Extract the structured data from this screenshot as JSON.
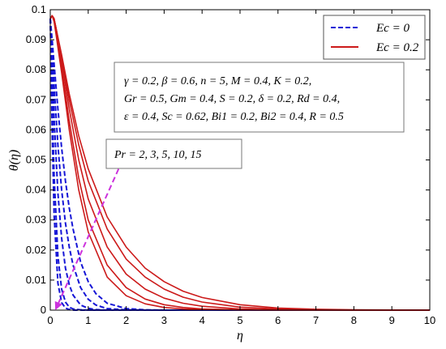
{
  "chart_data": {
    "type": "line",
    "xlabel": "η",
    "ylabel": "θ(η)",
    "xlim": [
      0,
      10
    ],
    "ylim": [
      0,
      0.1
    ],
    "x_ticks": [
      "0",
      "1",
      "2",
      "3",
      "4",
      "5",
      "6",
      "7",
      "8",
      "9",
      "10"
    ],
    "y_ticks": [
      "0",
      "0.01",
      "0.02",
      "0.03",
      "0.04",
      "0.05",
      "0.06",
      "0.07",
      "0.08",
      "0.09",
      "0.1"
    ],
    "legend": {
      "placement": "top-right",
      "entries": [
        {
          "label": "Ec = 0",
          "color": "#1515d6",
          "style": "dashed"
        },
        {
          "label": "Ec = 0.2",
          "color": "#cc1a1a",
          "style": "solid"
        }
      ]
    },
    "parameter_box_lines": [
      "γ = 0.2, β = 0.6, n = 5, M = 0.4, K = 0.2,",
      "Gr = 0.5, Gm = 0.4, S = 0.2, δ = 0.2, Rd = 0.4,",
      "ε = 0.4, Sc = 0.62, Bi1 = 0.2, Bi2 = 0.4, R = 0.5"
    ],
    "annotation": {
      "text": "Pr = 2, 3, 5, 10, 15",
      "arrow_from": [
        1.8,
        0.047
      ],
      "arrow_to": [
        0.15,
        0.0005
      ],
      "color": "#cc33dd"
    },
    "pr_values": [
      2,
      3,
      5,
      10,
      15
    ],
    "series": [
      {
        "name": "Ec = 0",
        "style": "dashed",
        "color": "#1515d6",
        "x": [
          0,
          0.05,
          0.1,
          0.2,
          0.3,
          0.4,
          0.5,
          0.6,
          0.8,
          1.0,
          1.2,
          1.5,
          2.0,
          2.5,
          3.0
        ],
        "values": [
          [
            0.097,
            0.09,
            0.082,
            0.067,
            0.054,
            0.043,
            0.034,
            0.027,
            0.016,
            0.0095,
            0.0055,
            0.0023,
            0.0005,
            0.0001,
            0
          ],
          [
            0.097,
            0.087,
            0.075,
            0.055,
            0.04,
            0.029,
            0.021,
            0.015,
            0.0075,
            0.0036,
            0.0017,
            0.0005,
            0.0001,
            0,
            0
          ],
          [
            0.097,
            0.082,
            0.064,
            0.039,
            0.024,
            0.014,
            0.0085,
            0.005,
            0.0017,
            0.0006,
            0.0002,
            0,
            0,
            0,
            0
          ],
          [
            0.097,
            0.07,
            0.045,
            0.018,
            0.007,
            0.0027,
            0.001,
            0.0004,
            0.0001,
            0,
            0,
            0,
            0,
            0,
            0
          ],
          [
            0.097,
            0.06,
            0.032,
            0.009,
            0.0025,
            0.0007,
            0.0002,
            0,
            0,
            0,
            0,
            0,
            0,
            0,
            0
          ]
        ]
      },
      {
        "name": "Ec = 0.2",
        "style": "solid",
        "color": "#cc1a1a",
        "x": [
          0,
          0.05,
          0.1,
          0.15,
          0.3,
          0.5,
          0.75,
          1.0,
          1.5,
          2.0,
          2.5,
          3.0,
          3.5,
          4.0,
          5.0,
          6.0,
          7.0,
          8.0
        ],
        "values": [
          [
            0.097,
            0.098,
            0.097,
            0.094,
            0.085,
            0.072,
            0.058,
            0.047,
            0.031,
            0.021,
            0.014,
            0.0095,
            0.0063,
            0.0042,
            0.0018,
            0.0007,
            0.0003,
            0.0001
          ],
          [
            0.097,
            0.098,
            0.097,
            0.094,
            0.084,
            0.07,
            0.055,
            0.043,
            0.027,
            0.017,
            0.011,
            0.007,
            0.0043,
            0.0027,
            0.001,
            0.0004,
            0.0001,
            0
          ],
          [
            0.097,
            0.098,
            0.097,
            0.094,
            0.083,
            0.067,
            0.05,
            0.037,
            0.021,
            0.012,
            0.007,
            0.004,
            0.0023,
            0.0013,
            0.0004,
            0.0001,
            0,
            0
          ],
          [
            0.097,
            0.098,
            0.097,
            0.093,
            0.081,
            0.063,
            0.044,
            0.03,
            0.015,
            0.0075,
            0.0037,
            0.0018,
            0.0009,
            0.0004,
            0.0001,
            0,
            0,
            0
          ],
          [
            0.097,
            0.098,
            0.096,
            0.092,
            0.079,
            0.06,
            0.04,
            0.026,
            0.011,
            0.0048,
            0.0021,
            0.0009,
            0.0004,
            0.0002,
            0,
            0,
            0,
            0
          ]
        ]
      }
    ]
  }
}
